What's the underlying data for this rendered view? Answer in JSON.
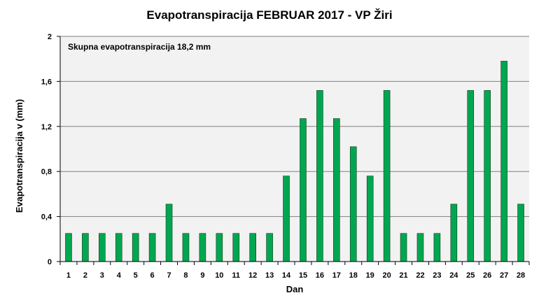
{
  "chart_data": {
    "type": "bar",
    "title": "Evapotranspiracija  FEBRUAR 2017 - VP Žiri",
    "xlabel": "Dan",
    "ylabel": "Evapotranspiracija v  (mm)",
    "annotation": "Skupna evapotranspiracija  18,2 mm",
    "categories": [
      "1",
      "2",
      "3",
      "4",
      "5",
      "6",
      "7",
      "8",
      "9",
      "10",
      "11",
      "12",
      "13",
      "14",
      "15",
      "16",
      "17",
      "18",
      "19",
      "20",
      "21",
      "22",
      "23",
      "24",
      "25",
      "26",
      "27",
      "28"
    ],
    "values": [
      0.25,
      0.25,
      0.25,
      0.25,
      0.25,
      0.25,
      0.51,
      0.25,
      0.25,
      0.25,
      0.25,
      0.25,
      0.25,
      0.76,
      1.27,
      1.52,
      1.27,
      1.02,
      0.76,
      1.52,
      0.25,
      0.25,
      0.25,
      0.51,
      1.52,
      1.52,
      1.78,
      0.51
    ],
    "ylim": [
      0,
      2
    ],
    "yticks": [
      0,
      0.4,
      0.8,
      1.2,
      1.6,
      2
    ],
    "ytick_labels": [
      "0",
      "0,4",
      "0,8",
      "1,2",
      "1,6",
      "2"
    ],
    "grid": true,
    "colors": {
      "bar_fill": "#00a651",
      "bar_stroke": "#1a3a1a",
      "plot_bg": "#f2f2f2",
      "grid": "#808080"
    }
  }
}
